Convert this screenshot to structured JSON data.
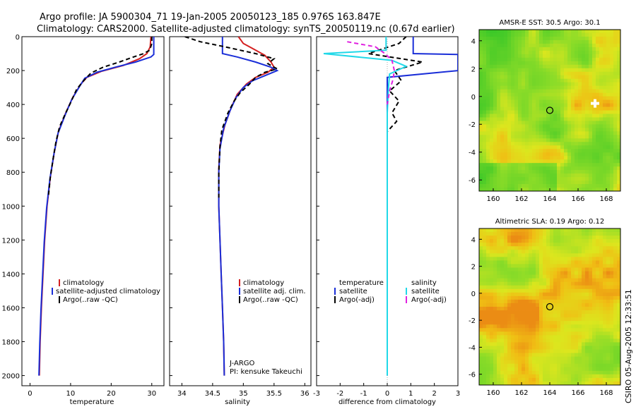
{
  "header": {
    "line1": "Argo profile: JA 5900304_71 19-Jan-2005 20050123_185 0.976S 163.847E",
    "line2": "Climatology: CARS2000. Satellite-adjusted climatology: synTS_20050119.nc (0.67d earlier)"
  },
  "stamp": "CSIRO 05-Aug-2005 12:33:51",
  "colors": {
    "climatology": "#d42020",
    "satellite": "#1a2ed8",
    "argo": "#000000",
    "sal_sat": "#20d8e8",
    "sal_argo": "#e020e0"
  },
  "chart_data": [
    {
      "type": "line",
      "id": "temperature",
      "xlabel": "temperature",
      "ylabel": "",
      "xlim": [
        -2,
        33
      ],
      "ylim": [
        0,
        2060
      ],
      "y_reversed": true,
      "xticks": [
        0,
        10,
        20,
        30
      ],
      "yticks": [
        0,
        200,
        400,
        600,
        800,
        1000,
        1200,
        1400,
        1600,
        1800,
        2000
      ],
      "legend": [
        "climatology",
        "satellite-adjusted climatology",
        "Argo(..raw -QC)"
      ],
      "series": [
        {
          "name": "climatology",
          "color": "#d42020",
          "dash": "",
          "points": [
            [
              29.8,
              0
            ],
            [
              29.6,
              60
            ],
            [
              28.8,
              100
            ],
            [
              27.0,
              130
            ],
            [
              23.0,
              170
            ],
            [
              17.5,
              205
            ],
            [
              14.0,
              240
            ],
            [
              12.5,
              280
            ],
            [
              10.5,
              360
            ],
            [
              8.8,
              450
            ],
            [
              7.0,
              560
            ],
            [
              6.0,
              680
            ],
            [
              5.0,
              830
            ],
            [
              4.2,
              1000
            ],
            [
              3.6,
              1200
            ],
            [
              3.2,
              1400
            ],
            [
              2.8,
              1600
            ],
            [
              2.5,
              1800
            ],
            [
              2.3,
              2000
            ]
          ]
        },
        {
          "name": "satellite-adjusted climatology",
          "color": "#1a2ed8",
          "dash": "",
          "points": [
            [
              30.5,
              0
            ],
            [
              30.5,
              105
            ],
            [
              29.8,
              120
            ],
            [
              26.0,
              150
            ],
            [
              21.0,
              180
            ],
            [
              16.5,
              210
            ],
            [
              13.5,
              245
            ],
            [
              12.3,
              290
            ],
            [
              10.3,
              370
            ],
            [
              8.7,
              460
            ],
            [
              6.9,
              570
            ],
            [
              5.9,
              690
            ],
            [
              4.9,
              840
            ],
            [
              4.1,
              1010
            ],
            [
              3.5,
              1210
            ],
            [
              3.1,
              1410
            ],
            [
              2.7,
              1610
            ],
            [
              2.4,
              1810
            ],
            [
              2.2,
              2000
            ]
          ]
        },
        {
          "name": "Argo(..raw -QC)",
          "color": "#000000",
          "dash": "6,4",
          "points": [
            [
              30.0,
              0
            ],
            [
              30.0,
              40
            ],
            [
              29.5,
              80
            ],
            [
              28.0,
              100
            ],
            [
              25.5,
              120
            ],
            [
              22.0,
              150
            ],
            [
              18.0,
              180
            ],
            [
              15.0,
              215
            ],
            [
              13.2,
              260
            ],
            [
              11.5,
              310
            ],
            [
              10.0,
              390
            ],
            [
              8.6,
              460
            ],
            [
              7.3,
              530
            ],
            [
              6.4,
              620
            ],
            [
              5.7,
              720
            ],
            [
              5.0,
              830
            ],
            [
              4.5,
              950
            ]
          ]
        }
      ]
    },
    {
      "type": "line",
      "id": "salinity",
      "xlabel": "salinity",
      "ylabel": "",
      "xlim": [
        33.8,
        36.1
      ],
      "ylim": [
        0,
        2060
      ],
      "y_reversed": true,
      "xticks": [
        34,
        34.5,
        35,
        35.5,
        36
      ],
      "yticks": [],
      "legend": [
        "climatology",
        "satellite adj. clim.",
        "Argo(..raw -QC)"
      ],
      "annotations": [
        "J-ARGO",
        "PI: kensuke Takeuchi"
      ],
      "series": [
        {
          "name": "climatology",
          "color": "#d42020",
          "dash": "",
          "points": [
            [
              34.92,
              0
            ],
            [
              35.0,
              40
            ],
            [
              35.15,
              70
            ],
            [
              35.35,
              110
            ],
            [
              35.45,
              150
            ],
            [
              35.5,
              180
            ],
            [
              35.4,
              210
            ],
            [
              35.2,
              240
            ],
            [
              35.05,
              280
            ],
            [
              34.9,
              340
            ],
            [
              34.8,
              420
            ],
            [
              34.7,
              520
            ],
            [
              34.62,
              640
            ],
            [
              34.6,
              780
            ],
            [
              34.6,
              1000
            ],
            [
              34.62,
              1200
            ],
            [
              34.64,
              1400
            ],
            [
              34.66,
              1600
            ],
            [
              34.68,
              1800
            ],
            [
              34.69,
              2000
            ]
          ]
        },
        {
          "name": "satellite adj. clim.",
          "color": "#1a2ed8",
          "dash": "",
          "points": [
            [
              34.66,
              0
            ],
            [
              34.66,
              100
            ],
            [
              34.9,
              120
            ],
            [
              35.2,
              150
            ],
            [
              35.45,
              180
            ],
            [
              35.55,
              200
            ],
            [
              35.35,
              230
            ],
            [
              35.15,
              260
            ],
            [
              35.0,
              300
            ],
            [
              34.88,
              360
            ],
            [
              34.78,
              440
            ],
            [
              34.68,
              540
            ],
            [
              34.62,
              660
            ],
            [
              34.6,
              800
            ],
            [
              34.6,
              1000
            ],
            [
              34.62,
              1200
            ],
            [
              34.64,
              1400
            ],
            [
              34.66,
              1600
            ],
            [
              34.68,
              1800
            ],
            [
              34.69,
              2000
            ]
          ]
        },
        {
          "name": "Argo(..raw -QC)",
          "color": "#000000",
          "dash": "6,4",
          "points": [
            [
              34.05,
              0
            ],
            [
              34.3,
              30
            ],
            [
              34.7,
              60
            ],
            [
              35.2,
              100
            ],
            [
              35.5,
              130
            ],
            [
              35.4,
              160
            ],
            [
              35.55,
              190
            ],
            [
              35.35,
              210
            ],
            [
              35.2,
              240
            ],
            [
              35.1,
              280
            ],
            [
              34.95,
              330
            ],
            [
              34.85,
              380
            ],
            [
              34.75,
              450
            ],
            [
              34.65,
              550
            ],
            [
              34.62,
              650
            ],
            [
              34.6,
              800
            ],
            [
              34.6,
              950
            ]
          ]
        }
      ]
    },
    {
      "type": "line",
      "id": "difference",
      "xlabel": "difference from climatology",
      "ylabel": "",
      "xlim": [
        -3,
        3
      ],
      "ylim": [
        0,
        2060
      ],
      "y_reversed": true,
      "xticks": [
        -3,
        -2,
        -1,
        0,
        1,
        2,
        3
      ],
      "yticks": [],
      "legend_left_title": "temperature",
      "legend_right_title": "salinity",
      "legend": [
        "satellite",
        "Argo(-adj)",
        "satellite",
        "Argo(-adj)"
      ],
      "series": [
        {
          "name": "temperature satellite",
          "color": "#1a2ed8",
          "dash": "",
          "points": [
            [
              1.1,
              0
            ],
            [
              1.1,
              100
            ],
            [
              3.0,
              105
            ],
            [
              3.0,
              200
            ],
            [
              0.0,
              240
            ],
            [
              0.0,
              2000
            ]
          ]
        },
        {
          "name": "temperature Argo(-adj)",
          "color": "#000000",
          "dash": "6,4",
          "points": [
            [
              0.8,
              0
            ],
            [
              0.5,
              40
            ],
            [
              -0.8,
              100
            ],
            [
              1.5,
              150
            ],
            [
              0.3,
              200
            ],
            [
              0.6,
              260
            ],
            [
              0.1,
              320
            ],
            [
              0.5,
              380
            ],
            [
              0.2,
              450
            ],
            [
              0.4,
              500
            ],
            [
              0.0,
              560
            ],
            [
              0.0,
              950
            ]
          ]
        },
        {
          "name": "salinity satellite",
          "color": "#20d8e8",
          "dash": "",
          "points": [
            [
              -0.05,
              0
            ],
            [
              -0.05,
              80
            ],
            [
              -2.7,
              100
            ],
            [
              0.2,
              140
            ],
            [
              0.8,
              175
            ],
            [
              0.1,
              220
            ],
            [
              0.05,
              300
            ],
            [
              0.0,
              450
            ],
            [
              0.0,
              2000
            ]
          ]
        },
        {
          "name": "salinity Argo(-adj)",
          "color": "#e020e0",
          "dash": "6,4",
          "points": [
            [
              -1.7,
              30
            ],
            [
              -0.5,
              60
            ],
            [
              -0.1,
              100
            ],
            [
              0.2,
              140
            ],
            [
              0.3,
              200
            ],
            [
              0.25,
              250
            ],
            [
              0.1,
              320
            ],
            [
              0.0,
              400
            ]
          ]
        }
      ]
    },
    {
      "type": "heatmap",
      "id": "sst-map",
      "title": "AMSR-E SST: 30.5 Argo: 30.1",
      "xlim": [
        159,
        169
      ],
      "ylim": [
        -6.8,
        4.8
      ],
      "xticks": [
        160,
        162,
        164,
        166,
        168
      ],
      "yticks": [
        4,
        2,
        0,
        -2,
        -4,
        -6
      ],
      "marker": [
        164,
        -1
      ],
      "extra_marker": [
        167.2,
        -0.5
      ]
    },
    {
      "type": "heatmap",
      "id": "sla-map",
      "title": "Altimetric SLA: 0.19 Argo: 0.12",
      "xlim": [
        159,
        169
      ],
      "ylim": [
        -6.8,
        4.8
      ],
      "xticks": [
        160,
        162,
        164,
        166,
        168
      ],
      "yticks": [
        4,
        2,
        0,
        -2,
        -4,
        -6
      ],
      "marker": [
        164,
        -1
      ]
    }
  ]
}
